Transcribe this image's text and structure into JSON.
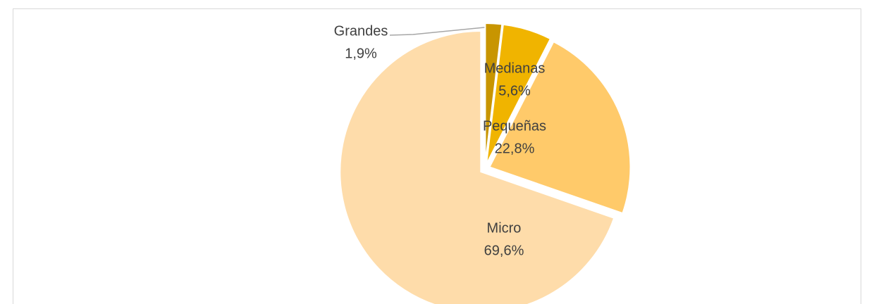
{
  "chart_data": {
    "type": "pie",
    "categories": [
      "Grandes",
      "Medianas",
      "Pequeñas",
      "Micro"
    ],
    "values": [
      1.9,
      5.6,
      22.8,
      69.6
    ],
    "value_labels": [
      "1,9%",
      "5,6%",
      "22,8%",
      "69,6%"
    ],
    "colors": [
      "#c89500",
      "#f0b400",
      "#ffca6a",
      "#fedcaa"
    ]
  }
}
